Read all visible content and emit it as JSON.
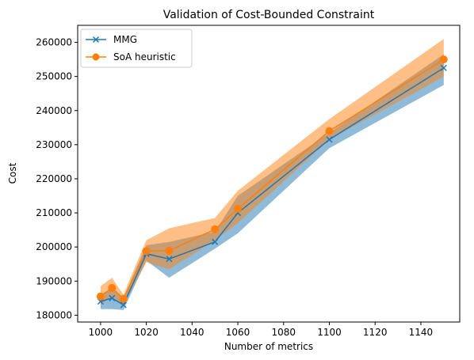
{
  "chart_data": {
    "type": "line",
    "title": "Validation of Cost-Bounded Constraint",
    "xlabel": "Number of metrics",
    "ylabel": "Cost",
    "xlim": [
      990,
      1157
    ],
    "ylim": [
      178000,
      265000
    ],
    "xticks": [
      1000,
      1020,
      1040,
      1060,
      1080,
      1100,
      1120,
      1140
    ],
    "yticks": [
      180000,
      190000,
      200000,
      210000,
      220000,
      230000,
      240000,
      250000,
      260000
    ],
    "x": [
      1000,
      1005,
      1010,
      1020,
      1030,
      1050,
      1060,
      1100,
      1150
    ],
    "grid": false,
    "legend": "upper left",
    "series": [
      {
        "name": "MMG",
        "color": "#1f77b4",
        "marker": "x",
        "values": [
          184000,
          185000,
          183000,
          198000,
          196500,
          201500,
          210000,
          231500,
          252500
        ],
        "lower": [
          181800,
          181800,
          181500,
          196000,
          191000,
          199500,
          204000,
          229000,
          247500
        ],
        "upper": [
          186000,
          188000,
          185000,
          200500,
          201500,
          204500,
          215000,
          233500,
          256500
        ]
      },
      {
        "name": "SoA heuristic",
        "color": "#ff7f0e",
        "marker": "o",
        "values": [
          185500,
          188000,
          184800,
          198800,
          198900,
          205200,
          211200,
          234000,
          255000
        ],
        "lower": [
          183000,
          185500,
          183000,
          195500,
          193500,
          202000,
          207000,
          231500,
          250000
        ],
        "upper": [
          188500,
          191000,
          186000,
          202000,
          205500,
          208500,
          216500,
          237500,
          261000
        ]
      }
    ]
  }
}
